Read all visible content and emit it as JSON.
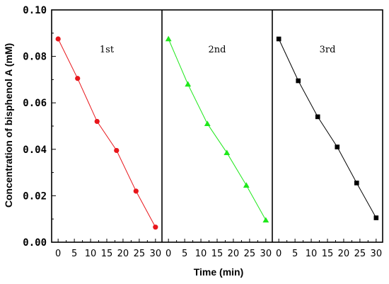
{
  "chart_data": {
    "type": "line",
    "xlabel": "Time (min)",
    "ylabel": "Concentration of bisphenol A (mM)",
    "ylim": [
      0.0,
      0.1
    ],
    "yticks": [
      "0.00",
      "0.02",
      "0.04",
      "0.06",
      "0.08",
      "0.10"
    ],
    "xlim": [
      -2,
      32
    ],
    "xticks": [
      "0",
      "5",
      "10",
      "15",
      "20",
      "25",
      "30"
    ],
    "grid": false,
    "panels": [
      {
        "label": "1st",
        "color": "#e8161b",
        "marker": "circle",
        "x": [
          0,
          6,
          12,
          18,
          24,
          30
        ],
        "y": [
          0.0875,
          0.0705,
          0.052,
          0.0395,
          0.022,
          0.0065
        ]
      },
      {
        "label": "2nd",
        "color": "#1ee81a",
        "marker": "triangle",
        "x": [
          0,
          6,
          12,
          18,
          24,
          30
        ],
        "y": [
          0.0875,
          0.068,
          0.051,
          0.0385,
          0.0245,
          0.0095
        ]
      },
      {
        "label": "3rd",
        "color": "#000000",
        "marker": "square",
        "x": [
          0,
          6,
          12,
          18,
          24,
          30
        ],
        "y": [
          0.0875,
          0.0695,
          0.054,
          0.041,
          0.0255,
          0.0105
        ]
      }
    ]
  }
}
